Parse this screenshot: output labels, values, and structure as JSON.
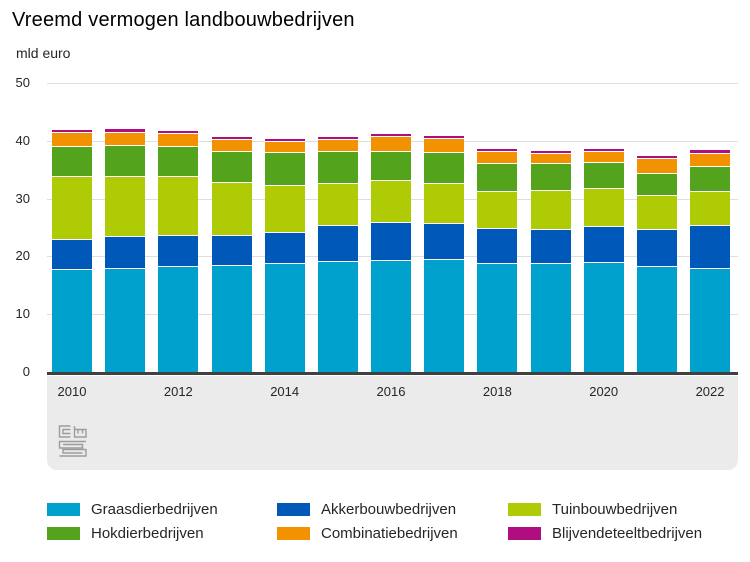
{
  "header": {
    "title": "Vreemd vermogen landbouwbedrijven",
    "unit_label": "mld euro"
  },
  "chart_data": {
    "type": "bar",
    "stacked": true,
    "title": "Vreemd vermogen landbouwbedrijven",
    "ylabel": "mld euro",
    "xlabel": "",
    "ylim": [
      0,
      50
    ],
    "yticks": [
      0,
      10,
      20,
      30,
      40,
      50
    ],
    "grid": "horizontal",
    "legend_position": "bottom",
    "categories": [
      "2010",
      "2011",
      "2012",
      "2013",
      "2014",
      "2015",
      "2016",
      "2017",
      "2018",
      "2019",
      "2020",
      "2021",
      "2022"
    ],
    "x_tick_labels": [
      "2010",
      "2012",
      "2014",
      "2016",
      "2018",
      "2020",
      "2022"
    ],
    "series": [
      {
        "name": "Graasdierbedrijven",
        "color": "#00a1cd",
        "values": [
          17.6,
          17.8,
          18.2,
          18.3,
          18.6,
          19.0,
          19.2,
          19.3,
          18.7,
          18.7,
          18.9,
          18.2,
          17.8
        ]
      },
      {
        "name": "Akkerbouwbedrijven",
        "color": "#0058b8",
        "values": [
          5.2,
          5.5,
          5.4,
          5.3,
          5.4,
          6.2,
          6.5,
          6.3,
          6.1,
          5.8,
          6.2,
          6.4,
          7.4
        ]
      },
      {
        "name": "Tuinbouwbedrijven",
        "color": "#afcb05",
        "values": [
          10.9,
          10.5,
          10.1,
          9.1,
          8.2,
          7.3,
          7.3,
          7.0,
          6.3,
          6.8,
          6.5,
          5.9,
          5.9
        ]
      },
      {
        "name": "Hokdierbedrijven",
        "color": "#53a31d",
        "values": [
          5.2,
          5.3,
          5.3,
          5.4,
          5.6,
          5.5,
          5.1,
          5.3,
          4.9,
          4.6,
          4.6,
          3.8,
          4.3
        ]
      },
      {
        "name": "Combinatiebedrijven",
        "color": "#f39200",
        "values": [
          2.4,
          2.3,
          2.1,
          2.1,
          2.0,
          2.1,
          2.5,
          2.4,
          2.1,
          1.9,
          1.8,
          2.5,
          2.4
        ]
      },
      {
        "name": "Blijvendeteeltbedrijven",
        "color": "#af0e80",
        "values": [
          0.6,
          0.6,
          0.6,
          0.5,
          0.5,
          0.6,
          0.5,
          0.6,
          0.4,
          0.5,
          0.5,
          0.6,
          0.6
        ]
      }
    ]
  },
  "footer": {
    "logo_name": "cbs-logo"
  },
  "colors": {
    "axis_line": "#404040",
    "gridline": "#dedede",
    "axis_band": "#ebebeb",
    "text": "#262626",
    "background": "#ffffff"
  }
}
